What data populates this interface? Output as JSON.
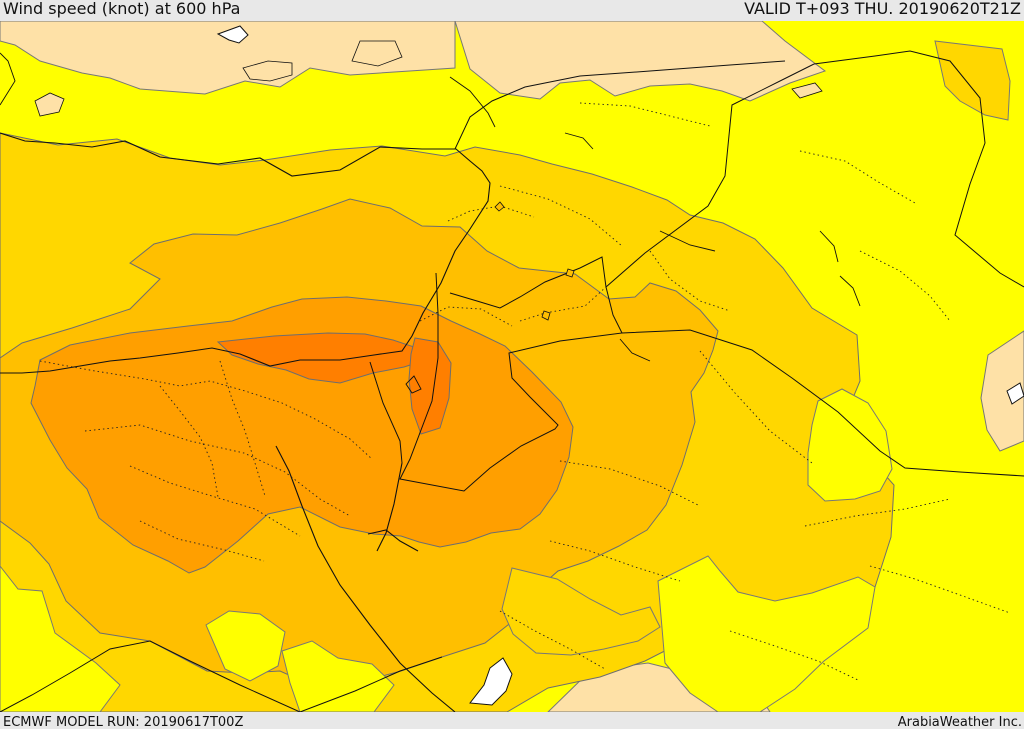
{
  "header": {
    "title": "Wind speed (knot) at 600 hPa",
    "valid": "VALID T+093 THU. 20190620T21Z"
  },
  "footer": {
    "model_run": "ECMWF MODEL RUN: 20190617T00Z",
    "brand": "ArabiaWeather Inc."
  },
  "map": {
    "palette": {
      "sea_or_low": "#ffffff",
      "very_low": "#fee1a7",
      "low": "#ffff00",
      "moderate": "#ffd700",
      "strong": "#ffbf00",
      "stronger": "#ff9f00",
      "max": "#ff7f00",
      "border": "#222222",
      "coast": "#111111",
      "contour": "#555555"
    }
  }
}
